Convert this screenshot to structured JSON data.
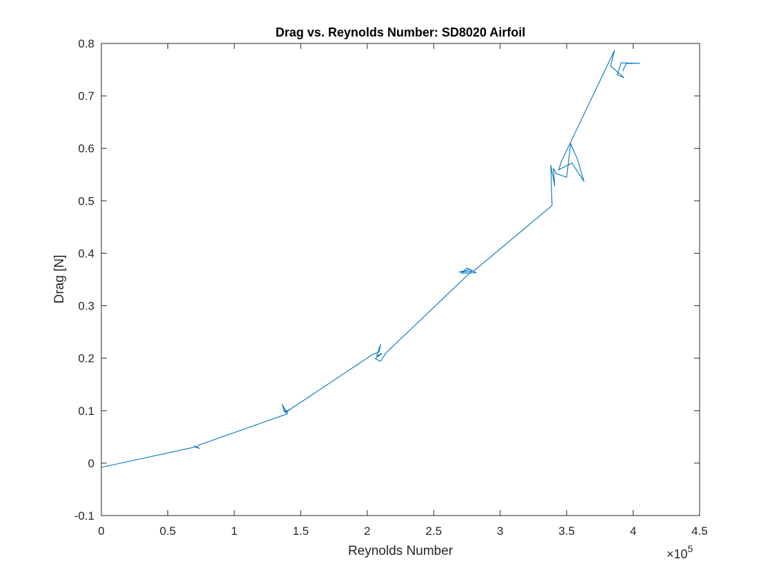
{
  "chart_data": {
    "type": "line",
    "title": "Drag vs. Reynolds Number: SD8020 Airfoil",
    "xlabel": "Reynolds Number",
    "ylabel": "Drag [N]",
    "x_multiplier": "×10",
    "x_exponent": "5",
    "xlim": [
      0,
      4.5
    ],
    "ylim": [
      -0.1,
      0.8
    ],
    "xticks": [
      0,
      0.5,
      1,
      1.5,
      2,
      2.5,
      3,
      3.5,
      4,
      4.5
    ],
    "yticks": [
      -0.1,
      0,
      0.1,
      0.2,
      0.3,
      0.4,
      0.5,
      0.6,
      0.7,
      0.8
    ],
    "xtick_labels": [
      "0",
      "0.5",
      "1",
      "1.5",
      "2",
      "2.5",
      "3",
      "3.5",
      "4",
      "4.5"
    ],
    "ytick_labels": [
      "-0.1",
      "0",
      "0.1",
      "0.2",
      "0.3",
      "0.4",
      "0.5",
      "0.6",
      "0.7",
      "0.8"
    ],
    "grid": false,
    "box": true,
    "line_color": "#0072BD",
    "series": [
      {
        "x": [
          0,
          0.71,
          0.74,
          0.7,
          0.72,
          0.73,
          1.4,
          1.36,
          1.38,
          1.42,
          1.39,
          1.37,
          1.4,
          2.04,
          2.09,
          2.1,
          2.07,
          2.11,
          2.06,
          2.1,
          2.14,
          2.79,
          2.75,
          2.71,
          2.82,
          2.77,
          2.69,
          2.8,
          3.39,
          3.38,
          3.41,
          3.4,
          3.42,
          3.5,
          3.53,
          3.58,
          3.63,
          3.54,
          3.44,
          3.46,
          3.86,
          3.83,
          3.93,
          3.88,
          3.91,
          4.05,
          3.95,
          3.92
        ],
        "y": [
          -0.008,
          0.031,
          0.028,
          0.033,
          0.029,
          0.034,
          0.094,
          0.112,
          0.097,
          0.103,
          0.096,
          0.101,
          0.099,
          0.207,
          0.212,
          0.226,
          0.204,
          0.209,
          0.199,
          0.194,
          0.21,
          0.367,
          0.372,
          0.362,
          0.363,
          0.369,
          0.364,
          0.366,
          0.491,
          0.568,
          0.528,
          0.562,
          0.552,
          0.545,
          0.609,
          0.58,
          0.537,
          0.572,
          0.559,
          0.575,
          0.787,
          0.757,
          0.735,
          0.74,
          0.763,
          0.762,
          0.762,
          0.747
        ]
      }
    ]
  }
}
